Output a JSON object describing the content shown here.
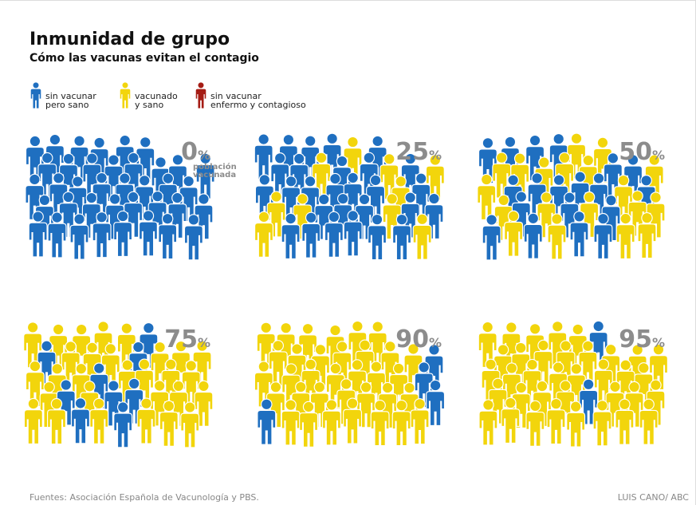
{
  "chart_data": {
    "type": "pictogram",
    "title": "Inmunidad de grupo",
    "subtitle": "Cómo las vacunas evitan el contagio",
    "legend": [
      {
        "lines": [
          "sin vacunar",
          "pero sano"
        ],
        "color": "#1f6fc0"
      },
      {
        "lines": [
          "vacunado",
          "y sano"
        ],
        "color": "#f2d50c"
      },
      {
        "lines": [
          "sin vacunar",
          "enfermo y contagioso"
        ],
        "color": "#a51c14"
      }
    ],
    "values": [
      0,
      25,
      50,
      75,
      90,
      95
    ],
    "value_suffix": "%",
    "annotation": [
      "población",
      "vacunada"
    ],
    "label_color": "#8c8c8c",
    "source": "Fuentes: Asociación Española de Vacunología y PBS.",
    "credit": "LUIS CANO/ ABC"
  }
}
